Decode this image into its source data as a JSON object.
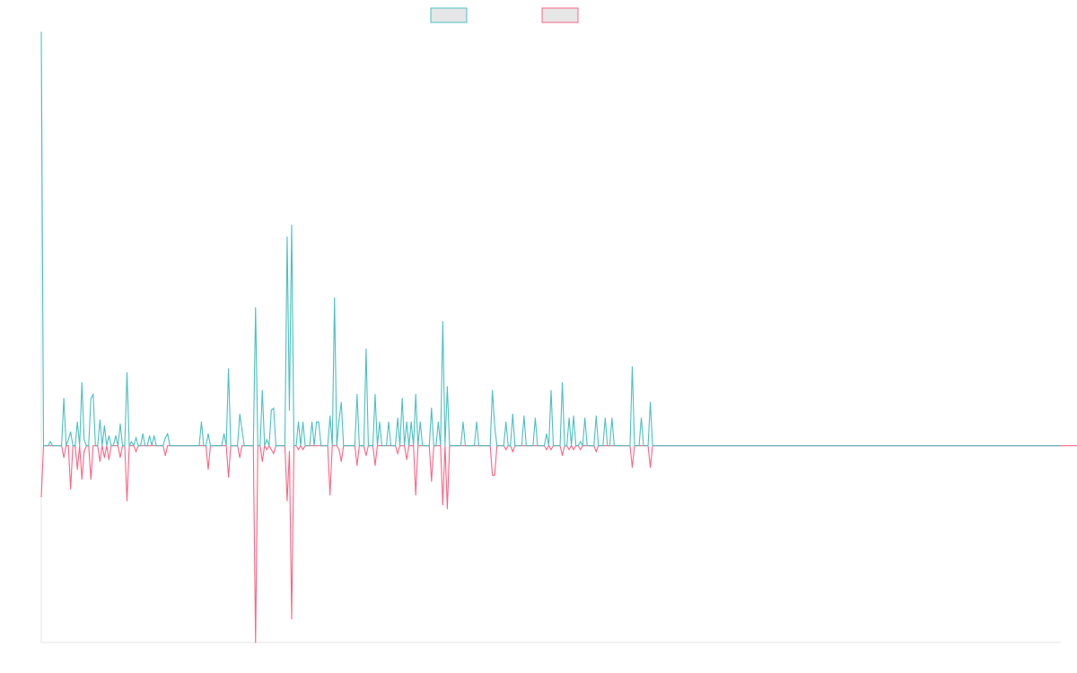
{
  "chart_data": {
    "type": "line",
    "title": "",
    "xlabel": "",
    "ylabel": "",
    "ylim": [
      -1,
      2.1
    ],
    "grid": false,
    "legend_position": "top-center",
    "series": [
      {
        "name": "",
        "color": "#4bc0c0",
        "fill": "#e6e6e6",
        "values": [
          2.1,
          0,
          0,
          0,
          0.02,
          0,
          0,
          0,
          0,
          0,
          0.24,
          0,
          0.03,
          0.07,
          0,
          0,
          0.12,
          0,
          0.32,
          0.03,
          0,
          0,
          0.24,
          0.26,
          0,
          0,
          0.13,
          0,
          0.1,
          0,
          0.05,
          0,
          0,
          0.05,
          0,
          0.11,
          0,
          0,
          0.37,
          0,
          0.02,
          0,
          0.04,
          0,
          0,
          0.06,
          0,
          0,
          0.05,
          0,
          0.05,
          0,
          0,
          0,
          0,
          0.04,
          0.06,
          0,
          0,
          0,
          0,
          0,
          0,
          0,
          0,
          0,
          0,
          0,
          0,
          0,
          0,
          0.12,
          0,
          0,
          0.06,
          0,
          0,
          0,
          0,
          0,
          0,
          0.06,
          0,
          0.39,
          0,
          0,
          0,
          0,
          0.16,
          0.08,
          0,
          0,
          0,
          0,
          0,
          0.7,
          0,
          0,
          0.28,
          0,
          0.03,
          0,
          0.18,
          0.19,
          0,
          0,
          0,
          0,
          0,
          1.06,
          0.18,
          1.12,
          0,
          0,
          0.12,
          0,
          0.12,
          0,
          0,
          0,
          0.12,
          0,
          0.12,
          0.12,
          0,
          0,
          0,
          0,
          0.15,
          0,
          0.75,
          0,
          0.13,
          0.22,
          0,
          0,
          0,
          0,
          0,
          0,
          0.26,
          0,
          0,
          0,
          0.49,
          0,
          0,
          0,
          0.26,
          0,
          0.12,
          0,
          0,
          0,
          0.12,
          0,
          0,
          0,
          0.14,
          0,
          0.24,
          0,
          0.12,
          0,
          0.12,
          0,
          0.26,
          0,
          0.12,
          0,
          0,
          0,
          0,
          0.19,
          0,
          0,
          0.12,
          0,
          0.63,
          0,
          0.3,
          0,
          0,
          0,
          0,
          0,
          0,
          0.12,
          0,
          0,
          0,
          0,
          0,
          0.12,
          0,
          0,
          0,
          0,
          0,
          0,
          0.28,
          0.1,
          0,
          0,
          0,
          0,
          0.12,
          0,
          0,
          0.16,
          0,
          0,
          0,
          0,
          0.15,
          0,
          0,
          0,
          0,
          0.14,
          0,
          0,
          0,
          0,
          0.06,
          0,
          0.28,
          0,
          0,
          0,
          0,
          0.32,
          0,
          0,
          0.14,
          0,
          0.15,
          0,
          0,
          0.02,
          0,
          0.14,
          0,
          0,
          0,
          0,
          0.15,
          0,
          0,
          0,
          0.14,
          0,
          0,
          0.14,
          0,
          0,
          0,
          0,
          0,
          0,
          0,
          0,
          0.4,
          0,
          0,
          0,
          0.14,
          0,
          0,
          0,
          0.22,
          0,
          0,
          0,
          0,
          0,
          0,
          0,
          0,
          0,
          0,
          0,
          0,
          0,
          0,
          0,
          0,
          0,
          0,
          0,
          0,
          0,
          0,
          0,
          0,
          0,
          0,
          0,
          0,
          0,
          0,
          0,
          0,
          0,
          0,
          0,
          0,
          0,
          0,
          0,
          0,
          0,
          0,
          0,
          0,
          0,
          0,
          0,
          0,
          0,
          0,
          0,
          0,
          0,
          0,
          0,
          0,
          0,
          0,
          0,
          0,
          0,
          0,
          0,
          0,
          0,
          0,
          0,
          0,
          0,
          0,
          0,
          0,
          0,
          0,
          0,
          0,
          0,
          0,
          0,
          0,
          0,
          0,
          0,
          0,
          0,
          0,
          0,
          0,
          0,
          0,
          0,
          0,
          0,
          0,
          0,
          0,
          0,
          0,
          0,
          0,
          0,
          0,
          0,
          0,
          0,
          0,
          0,
          0,
          0,
          0,
          0,
          0,
          0,
          0,
          0,
          0,
          0,
          0,
          0,
          0,
          0,
          0,
          0,
          0,
          0,
          0,
          0,
          0,
          0,
          0,
          0,
          0,
          0,
          0,
          0,
          0,
          0,
          0,
          0,
          0,
          0,
          0,
          0,
          0,
          0,
          0,
          0,
          0,
          0,
          0,
          0,
          0,
          0,
          0,
          0,
          0,
          0,
          0,
          0,
          0,
          0,
          0,
          0,
          0,
          0,
          0,
          0,
          0,
          0,
          0,
          0,
          0,
          0,
          0,
          0,
          0,
          0,
          0,
          0,
          0,
          0,
          0
        ]
      },
      {
        "name": "",
        "color": "#ff6384",
        "fill": "#e6e6e6",
        "values": [
          -0.26,
          0,
          0,
          0,
          0,
          0,
          0,
          0,
          0,
          0,
          -0.06,
          0,
          0,
          -0.22,
          0,
          0,
          -0.12,
          0,
          -0.17,
          -0.03,
          0,
          0,
          -0.17,
          0,
          0,
          0,
          -0.08,
          0,
          -0.06,
          0,
          -0.07,
          0,
          0,
          0,
          0,
          -0.06,
          0,
          0,
          -0.28,
          0,
          0,
          0,
          -0.03,
          0,
          0,
          0,
          0,
          0,
          0,
          0,
          0,
          0,
          0,
          0,
          0,
          -0.05,
          0,
          0,
          0,
          0,
          0,
          0,
          0,
          0,
          0,
          0,
          0,
          0,
          0,
          0,
          0,
          0,
          0,
          0,
          -0.12,
          0,
          0,
          0,
          0,
          0,
          0,
          0,
          0,
          -0.16,
          0,
          0,
          0,
          0,
          -0.06,
          0,
          0,
          0,
          0,
          0,
          0,
          -1,
          0,
          0,
          -0.08,
          0,
          -0.02,
          0,
          -0.02,
          -0.04,
          0,
          0,
          0,
          0,
          0,
          -0.28,
          -0.03,
          -0.88,
          0,
          0,
          -0.02,
          0,
          -0.02,
          0,
          0,
          0,
          0,
          0,
          0,
          0,
          0,
          0,
          0,
          0,
          -0.25,
          0,
          0,
          0,
          -0.02,
          -0.08,
          0,
          0,
          0,
          0,
          0,
          0,
          -0.1,
          0,
          0,
          0,
          -0.05,
          0,
          0,
          0,
          -0.1,
          0,
          0,
          0,
          0,
          0,
          0,
          0,
          0,
          0,
          -0.04,
          0,
          0,
          0,
          -0.07,
          0,
          0,
          0,
          -0.25,
          0,
          0,
          0,
          0,
          0,
          0,
          -0.18,
          0,
          0,
          0,
          0,
          -0.3,
          0,
          -0.32,
          0,
          0,
          0,
          0,
          0,
          0,
          0,
          0,
          0,
          0,
          0,
          0,
          0,
          0,
          0,
          0,
          0,
          0,
          0,
          -0.15,
          -0.15,
          0,
          0,
          0,
          0,
          -0.02,
          0,
          0,
          -0.03,
          0,
          0,
          0,
          0,
          0,
          0,
          0,
          0,
          0,
          0,
          0,
          0,
          0,
          0,
          -0.02,
          0,
          -0.02,
          0,
          0,
          0,
          0,
          -0.05,
          0,
          0,
          -0.02,
          0,
          -0.02,
          0,
          0,
          -0.02,
          0,
          0,
          0,
          0,
          0,
          0,
          -0.03,
          0,
          0,
          0,
          0,
          0,
          0,
          0,
          0,
          0,
          0,
          0,
          0,
          0,
          0,
          0,
          -0.11,
          0,
          0,
          0,
          0,
          0,
          0,
          0,
          -0.11,
          0,
          0,
          0,
          0,
          0,
          0,
          0,
          0,
          0,
          0,
          0,
          0,
          0,
          0,
          0,
          0,
          0,
          0,
          0,
          0,
          0,
          0,
          0,
          0,
          0,
          0,
          0,
          0,
          0,
          0,
          0,
          0,
          0,
          0,
          0,
          0,
          0,
          0,
          0,
          0,
          0,
          0,
          0,
          0,
          0,
          0,
          0,
          0,
          0,
          0,
          0,
          0,
          0,
          0,
          0,
          0,
          0,
          0,
          0,
          0,
          0,
          0,
          0,
          0,
          0,
          0,
          0,
          0,
          0,
          0,
          0,
          0,
          0,
          0,
          0,
          0,
          0,
          0,
          0,
          0,
          0,
          0,
          0,
          0,
          0,
          0,
          0,
          0,
          0,
          0,
          0,
          0,
          0,
          0,
          0,
          0,
          0,
          0,
          0,
          0,
          0,
          0,
          0,
          0,
          0,
          0,
          0,
          0,
          0,
          0,
          0,
          0,
          0,
          0,
          0,
          0,
          0,
          0,
          0,
          0,
          0,
          0,
          0,
          0,
          0,
          0,
          0,
          0,
          0,
          0,
          0,
          0,
          0,
          0,
          0,
          0,
          0,
          0,
          0,
          0,
          0,
          0,
          0,
          0,
          0,
          0,
          0,
          0,
          0,
          0,
          0,
          0,
          0,
          0,
          0,
          0,
          0,
          0,
          0,
          0,
          0,
          0,
          0,
          0,
          0,
          0,
          0,
          0,
          0,
          0,
          0,
          0,
          0,
          0,
          0,
          0,
          0,
          0,
          0,
          0,
          0,
          0,
          0,
          0,
          0,
          0,
          0,
          0,
          0,
          0,
          0,
          0,
          0,
          0,
          0,
          0,
          0,
          0,
          0,
          0,
          0,
          0,
          0,
          0,
          0,
          0,
          0,
          0,
          0,
          0,
          0,
          0,
          0,
          0,
          0,
          0,
          0,
          0
        ]
      }
    ]
  },
  "legend": {
    "items": [
      {
        "label": ""
      },
      {
        "label": ""
      }
    ]
  },
  "colors": {
    "axis": "#e6e6e6"
  }
}
